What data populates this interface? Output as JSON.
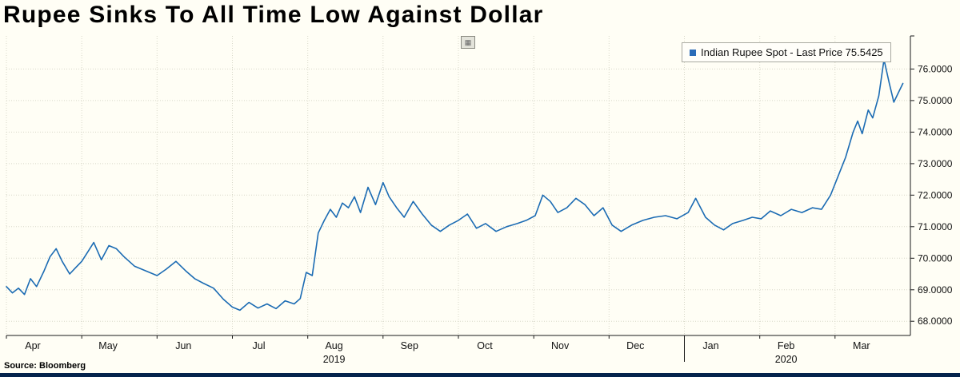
{
  "title": "Rupee Sinks To All Time Low Against Dollar",
  "source": "Source: Bloomberg",
  "legend": {
    "label": "Indian Rupee Spot - Last Price 75.5425",
    "marker_color": "#2b6cb8"
  },
  "icons": {
    "tool_button": "▦"
  },
  "colors": {
    "line": "#1b6bb3",
    "background": "#fffef5",
    "grid": "#d8d8c9",
    "axis": "#1a1a1a",
    "bottom_bar": "#05234c"
  },
  "chart_data": {
    "type": "line",
    "title": "Indian Rupee Spot",
    "legend_position": "top-right",
    "grid": true,
    "x_axis": {
      "months": [
        "Apr",
        "May",
        "Jun",
        "Jul",
        "Aug",
        "Sep",
        "Oct",
        "Nov",
        "Dec",
        "Jan",
        "Feb",
        "Mar"
      ],
      "years": [
        {
          "label": "2019",
          "month_index": 4
        },
        {
          "label": "2020",
          "month_index": 10
        }
      ],
      "year_divider_month_index": 9
    },
    "y_axis": {
      "ticks": [
        68,
        69,
        70,
        71,
        72,
        73,
        74,
        75,
        76
      ],
      "tick_format": "4-decimals",
      "range": [
        67.55,
        77.05
      ],
      "side": "right"
    },
    "series": [
      {
        "name": "Indian Rupee Spot",
        "last_price": 75.5425,
        "points": [
          [
            0.0,
            69.1
          ],
          [
            0.08,
            68.9
          ],
          [
            0.16,
            69.05
          ],
          [
            0.24,
            68.85
          ],
          [
            0.32,
            69.35
          ],
          [
            0.4,
            69.1
          ],
          [
            0.5,
            69.6
          ],
          [
            0.58,
            70.05
          ],
          [
            0.66,
            70.3
          ],
          [
            0.74,
            69.9
          ],
          [
            0.84,
            69.5
          ],
          [
            0.92,
            69.7
          ],
          [
            1.0,
            69.9
          ],
          [
            1.08,
            70.2
          ],
          [
            1.16,
            70.5
          ],
          [
            1.26,
            69.95
          ],
          [
            1.36,
            70.4
          ],
          [
            1.46,
            70.3
          ],
          [
            1.56,
            70.05
          ],
          [
            1.7,
            69.75
          ],
          [
            1.85,
            69.6
          ],
          [
            2.0,
            69.45
          ],
          [
            2.12,
            69.65
          ],
          [
            2.25,
            69.9
          ],
          [
            2.38,
            69.6
          ],
          [
            2.5,
            69.35
          ],
          [
            2.62,
            69.2
          ],
          [
            2.75,
            69.05
          ],
          [
            2.88,
            68.7
          ],
          [
            3.0,
            68.45
          ],
          [
            3.1,
            68.35
          ],
          [
            3.22,
            68.6
          ],
          [
            3.34,
            68.42
          ],
          [
            3.46,
            68.55
          ],
          [
            3.58,
            68.4
          ],
          [
            3.7,
            68.65
          ],
          [
            3.82,
            68.55
          ],
          [
            3.9,
            68.72
          ],
          [
            3.98,
            69.55
          ],
          [
            4.06,
            69.45
          ],
          [
            4.14,
            70.8
          ],
          [
            4.22,
            71.2
          ],
          [
            4.3,
            71.55
          ],
          [
            4.38,
            71.3
          ],
          [
            4.46,
            71.75
          ],
          [
            4.54,
            71.6
          ],
          [
            4.62,
            71.95
          ],
          [
            4.7,
            71.45
          ],
          [
            4.8,
            72.25
          ],
          [
            4.9,
            71.7
          ],
          [
            5.0,
            72.4
          ],
          [
            5.08,
            71.95
          ],
          [
            5.18,
            71.6
          ],
          [
            5.28,
            71.3
          ],
          [
            5.4,
            71.8
          ],
          [
            5.52,
            71.4
          ],
          [
            5.64,
            71.05
          ],
          [
            5.76,
            70.85
          ],
          [
            5.88,
            71.05
          ],
          [
            6.0,
            71.2
          ],
          [
            6.12,
            71.4
          ],
          [
            6.24,
            70.95
          ],
          [
            6.36,
            71.1
          ],
          [
            6.5,
            70.85
          ],
          [
            6.64,
            71.0
          ],
          [
            6.78,
            71.1
          ],
          [
            6.9,
            71.2
          ],
          [
            7.02,
            71.35
          ],
          [
            7.12,
            72.0
          ],
          [
            7.22,
            71.8
          ],
          [
            7.32,
            71.45
          ],
          [
            7.44,
            71.6
          ],
          [
            7.56,
            71.9
          ],
          [
            7.68,
            71.7
          ],
          [
            7.8,
            71.35
          ],
          [
            7.92,
            71.6
          ],
          [
            8.04,
            71.05
          ],
          [
            8.16,
            70.85
          ],
          [
            8.3,
            71.05
          ],
          [
            8.45,
            71.2
          ],
          [
            8.6,
            71.3
          ],
          [
            8.75,
            71.35
          ],
          [
            8.9,
            71.25
          ],
          [
            9.05,
            71.45
          ],
          [
            9.15,
            71.9
          ],
          [
            9.28,
            71.3
          ],
          [
            9.4,
            71.05
          ],
          [
            9.52,
            70.9
          ],
          [
            9.64,
            71.1
          ],
          [
            9.78,
            71.2
          ],
          [
            9.9,
            71.3
          ],
          [
            10.02,
            71.25
          ],
          [
            10.14,
            71.5
          ],
          [
            10.28,
            71.35
          ],
          [
            10.42,
            71.55
          ],
          [
            10.56,
            71.45
          ],
          [
            10.7,
            71.6
          ],
          [
            10.82,
            71.55
          ],
          [
            10.94,
            72.0
          ],
          [
            11.04,
            72.6
          ],
          [
            11.14,
            73.2
          ],
          [
            11.24,
            74.0
          ],
          [
            11.3,
            74.35
          ],
          [
            11.36,
            73.95
          ],
          [
            11.44,
            74.7
          ],
          [
            11.5,
            74.45
          ],
          [
            11.58,
            75.15
          ],
          [
            11.65,
            76.3
          ],
          [
            11.72,
            75.55
          ],
          [
            11.78,
            74.95
          ],
          [
            11.85,
            75.3
          ],
          [
            11.9,
            75.5425
          ]
        ]
      }
    ]
  }
}
